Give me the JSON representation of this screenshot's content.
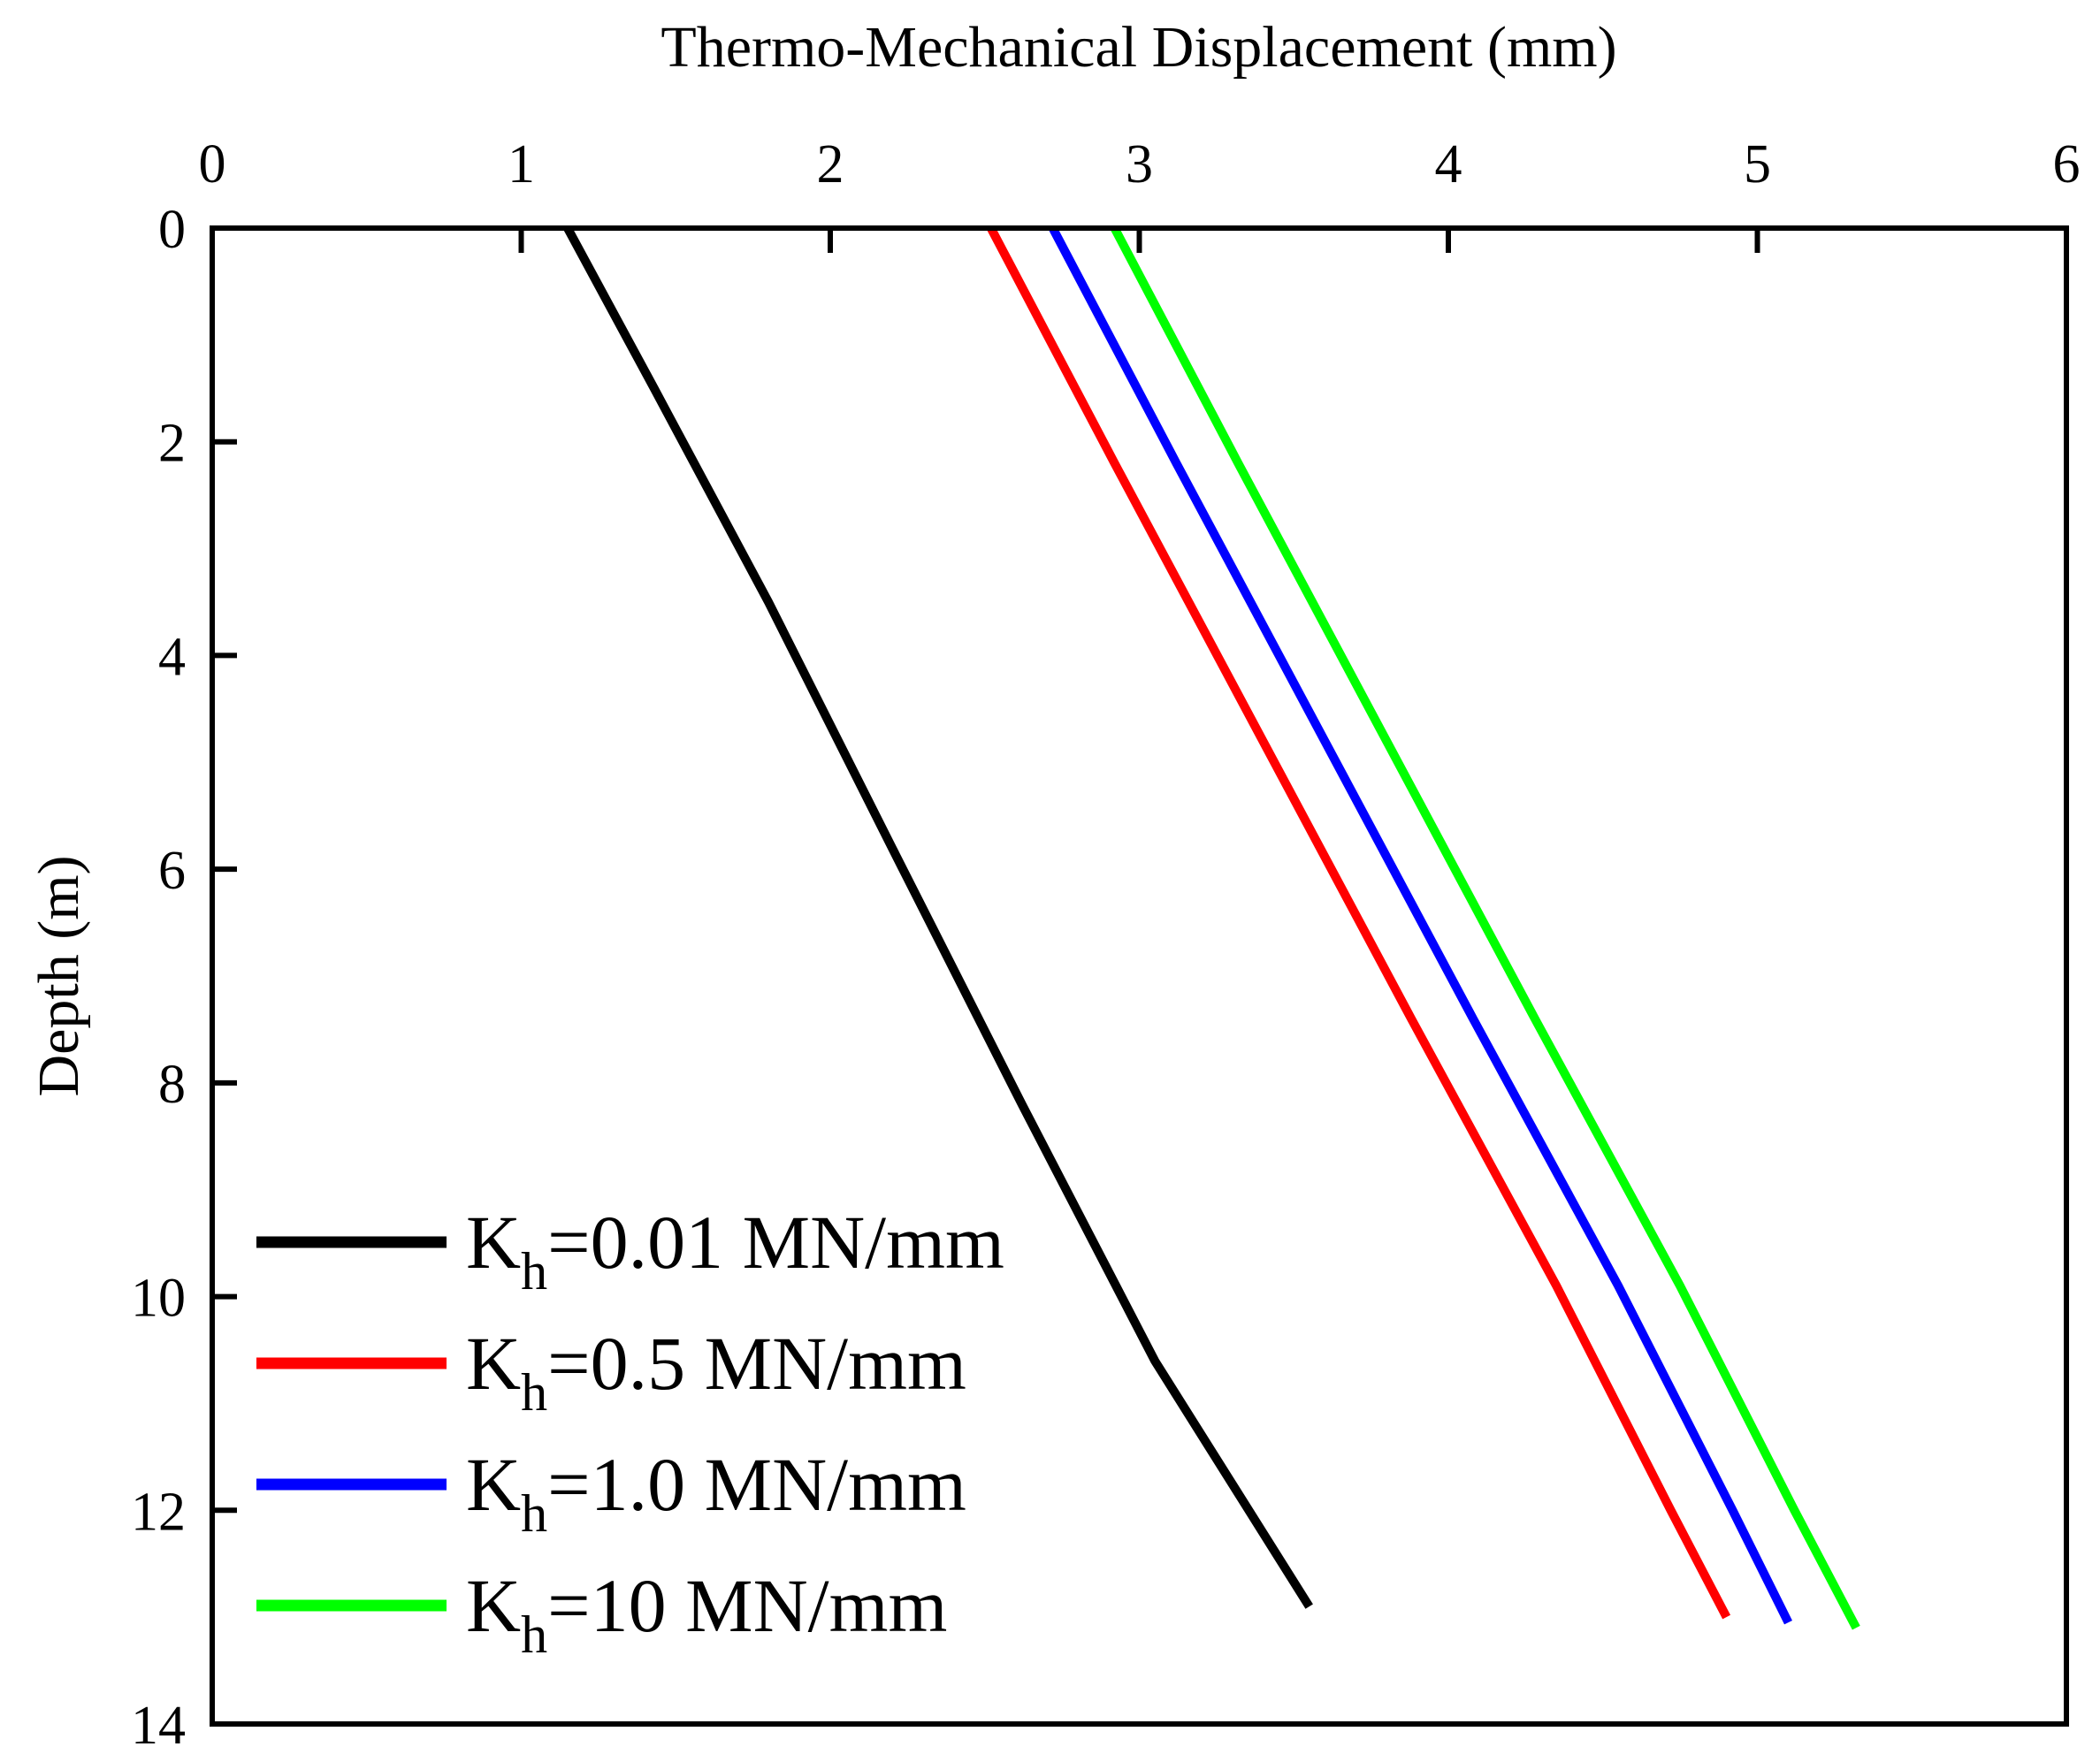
{
  "chart_data": {
    "type": "line",
    "title": "",
    "xlabel": "Thermo-Mechanical Displacement (mm)",
    "ylabel": "Depth (m)",
    "xlim": [
      0,
      6
    ],
    "ylim": [
      0,
      14
    ],
    "y_inverted": true,
    "x_axis_position": "top",
    "xticks": [
      0,
      1,
      2,
      3,
      4,
      5,
      6
    ],
    "yticks": [
      0,
      2,
      4,
      6,
      8,
      10,
      12,
      14
    ],
    "grid": false,
    "legend_position": "bottom-left",
    "series": [
      {
        "name": "Kh=0.01 MN/mm",
        "legend_main": "K",
        "legend_sub": "h",
        "legend_rest": "=0.01 MN/mm",
        "color": "#000000",
        "points": [
          [
            1.15,
            0
          ],
          [
            1.43,
            1.5
          ],
          [
            1.8,
            3.5
          ],
          [
            2.2,
            5.8
          ],
          [
            2.62,
            8.2
          ],
          [
            3.05,
            10.6
          ],
          [
            3.55,
            12.9
          ]
        ]
      },
      {
        "name": "Kh=0.5 MN/mm",
        "legend_main": "K",
        "legend_sub": "h",
        "legend_rest": "=0.5 MN/mm",
        "color": "#ff0000",
        "points": [
          [
            2.52,
            0
          ],
          [
            2.92,
            2.2
          ],
          [
            3.4,
            4.8
          ],
          [
            3.88,
            7.4
          ],
          [
            4.35,
            9.9
          ],
          [
            4.72,
            12.0
          ],
          [
            4.9,
            13.0
          ]
        ]
      },
      {
        "name": "Kh=1.0 MN/mm",
        "legend_main": "K",
        "legend_sub": "h",
        "legend_rest": "=1.0 MN/mm",
        "color": "#0000ff",
        "points": [
          [
            2.72,
            0
          ],
          [
            3.12,
            2.2
          ],
          [
            3.6,
            4.8
          ],
          [
            4.08,
            7.4
          ],
          [
            4.55,
            9.9
          ],
          [
            4.92,
            12.0
          ],
          [
            5.1,
            13.05
          ]
        ]
      },
      {
        "name": "Kh=10 MN/mm",
        "legend_main": "K",
        "legend_sub": "h",
        "legend_rest": "=10 MN/mm",
        "color": "#00ff00",
        "points": [
          [
            2.92,
            0
          ],
          [
            3.32,
            2.2
          ],
          [
            3.8,
            4.8
          ],
          [
            4.28,
            7.4
          ],
          [
            4.75,
            9.9
          ],
          [
            5.12,
            12.0
          ],
          [
            5.32,
            13.1
          ]
        ]
      }
    ]
  }
}
